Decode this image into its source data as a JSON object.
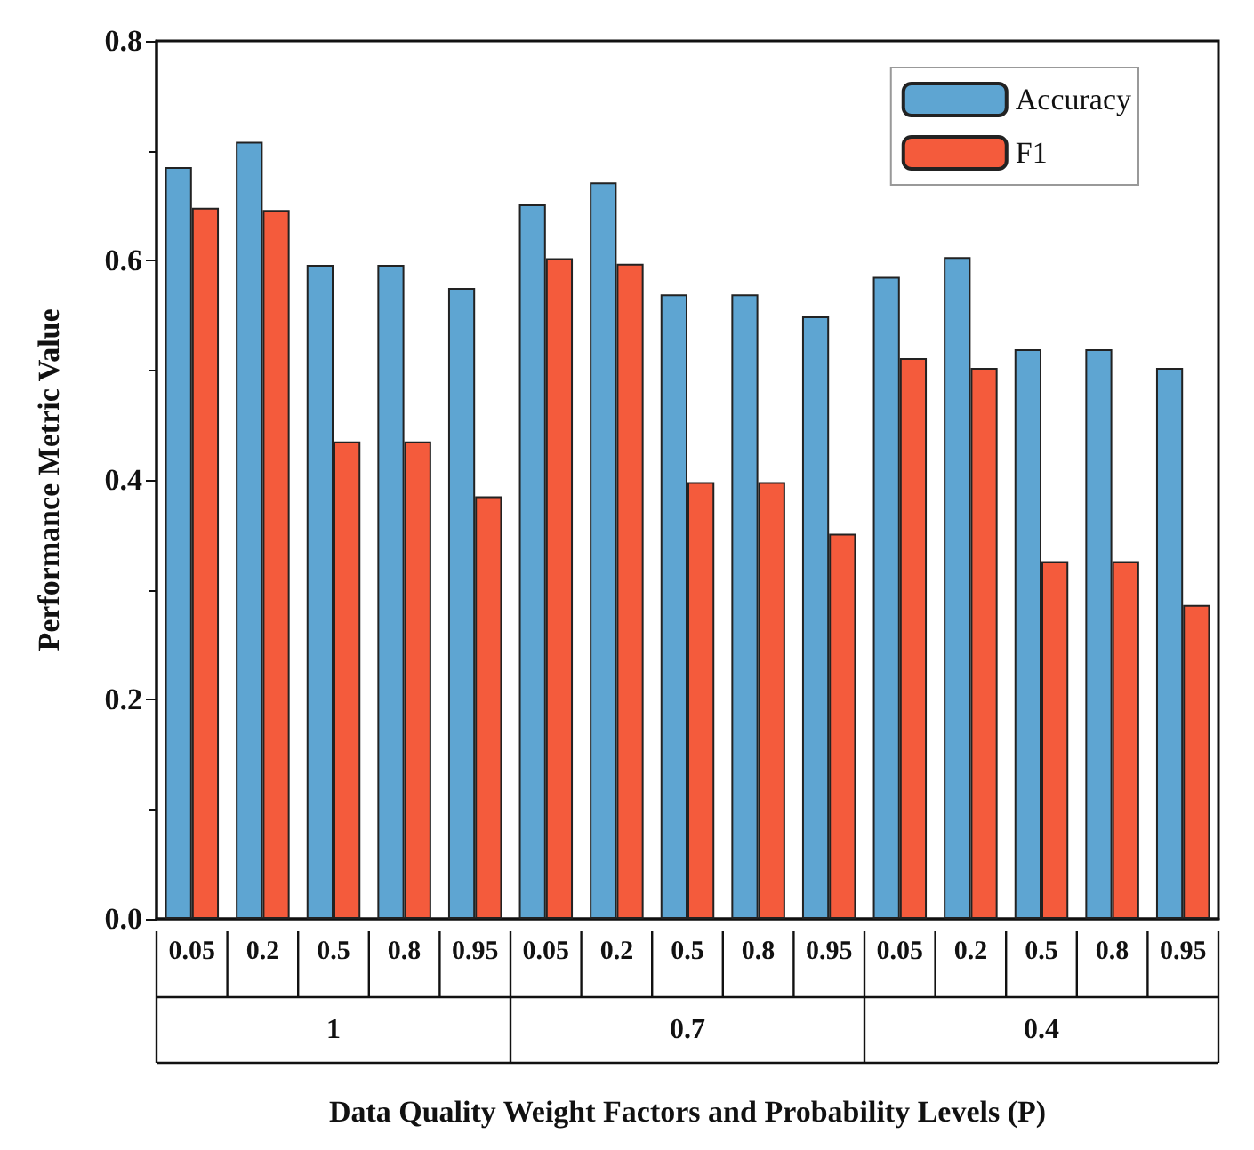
{
  "chart_data": {
    "type": "bar",
    "xlabel": "Data Quality Weight Factors and Probability Levels (P)",
    "ylabel": "Performance Metric Value",
    "categories": [
      "0.05",
      "0.2",
      "0.5",
      "0.8",
      "0.95",
      "0.05",
      "0.2",
      "0.5",
      "0.8",
      "0.95",
      "0.05",
      "0.2",
      "0.5",
      "0.8",
      "0.95"
    ],
    "series": [
      {
        "name": "Accuracy",
        "color": "#5ea5d2",
        "values": [
          0.685,
          0.708,
          0.596,
          0.596,
          0.575,
          0.651,
          0.671,
          0.569,
          0.569,
          0.549,
          0.585,
          0.603,
          0.519,
          0.519,
          0.502
        ]
      },
      {
        "name": "F1",
        "color": "#f45b3c",
        "values": [
          0.648,
          0.646,
          0.435,
          0.435,
          0.385,
          0.602,
          0.597,
          0.398,
          0.398,
          0.351,
          0.511,
          0.502,
          0.326,
          0.326,
          0.286
        ]
      }
    ],
    "ylim": [
      0,
      0.8
    ],
    "yticks": [
      {
        "value": 0,
        "label": "0.0"
      },
      {
        "value": 0.2,
        "label": "0.2"
      },
      {
        "value": 0.4,
        "label": "0.4"
      },
      {
        "value": 0.6,
        "label": "0.6"
      },
      {
        "value": 0.8,
        "label": "0.8"
      }
    ],
    "annotations": [
      "1",
      "0.7",
      "0.4"
    ],
    "grid": false,
    "legend": "top right"
  }
}
